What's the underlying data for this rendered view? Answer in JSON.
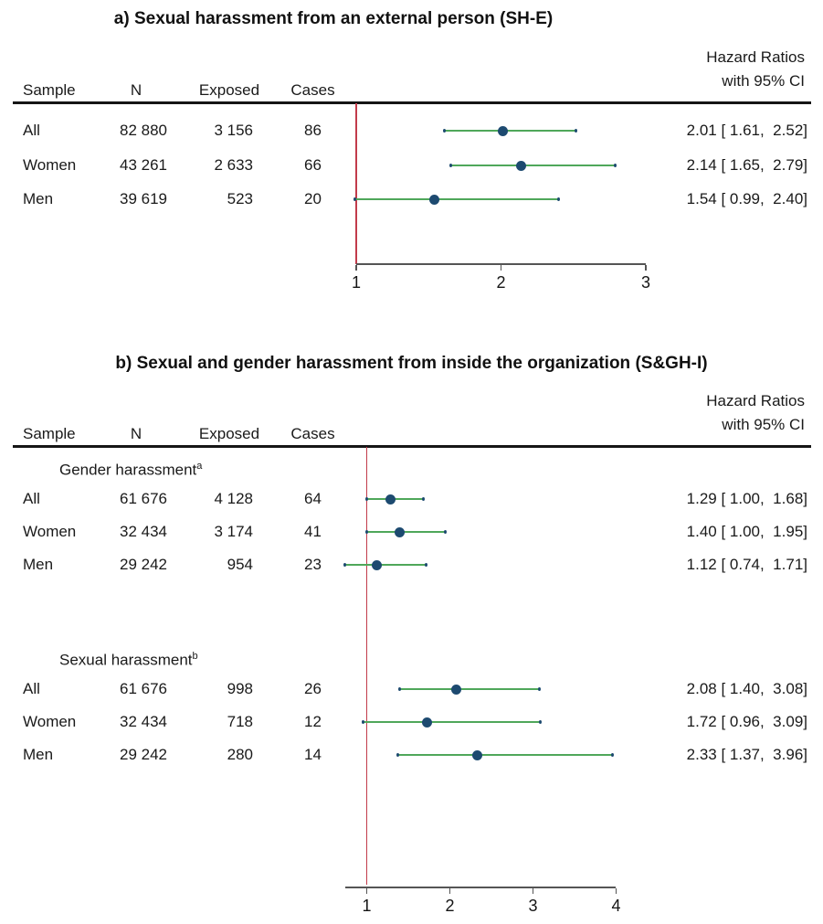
{
  "colors": {
    "ci_line": "#4fa75a",
    "marker": "#1d4a70",
    "ref_line": "#c23b4b",
    "axis": "#555555",
    "rule": "#151515",
    "text": "#1a1a1a"
  },
  "chart_data": [
    {
      "type": "scatter",
      "variant": "forest-plot",
      "title": "a) Sexual harassment from an external person (SH-E)",
      "col_headers": {
        "sample": "Sample",
        "n": "N",
        "exposed": "Exposed",
        "cases": "Cases"
      },
      "hr_header": [
        "Hazard Ratios",
        "with 95% CI"
      ],
      "xlabel": "Hazard Ratio",
      "xlim": [
        1,
        3
      ],
      "x_ticks": [
        1,
        2,
        3
      ],
      "ref_line_x": 1,
      "grid": false,
      "legend": "none",
      "rows": [
        {
          "sample": "All",
          "n": "82 880",
          "exposed": "3 156",
          "cases": "86",
          "hr": 2.01,
          "ci_low": 1.61,
          "ci_high": 2.52,
          "hr_label": "2.01 [ 1.61,  2.52]"
        },
        {
          "sample": "Women",
          "n": "43 261",
          "exposed": "2 633",
          "cases": "66",
          "hr": 2.14,
          "ci_low": 1.65,
          "ci_high": 2.79,
          "hr_label": "2.14 [ 1.65,  2.79]"
        },
        {
          "sample": "Men",
          "n": "39 619",
          "exposed": "523",
          "cases": "20",
          "hr": 1.54,
          "ci_low": 0.99,
          "ci_high": 2.4,
          "hr_label": "1.54 [ 0.99,  2.40]"
        }
      ]
    },
    {
      "type": "scatter",
      "variant": "forest-plot",
      "title": "b) Sexual and gender harassment from inside the organization (S&GH-I)",
      "col_headers": {
        "sample": "Sample",
        "n": "N",
        "exposed": "Exposed",
        "cases": "Cases"
      },
      "hr_header": [
        "Hazard Ratios",
        "with 95% CI"
      ],
      "xlabel": "Hazard Ratio",
      "xlim": [
        0.74,
        4
      ],
      "x_ticks": [
        1,
        2,
        3,
        4
      ],
      "ref_line_x": 1,
      "grid": false,
      "legend": "none",
      "groups": [
        {
          "label": "Gender harassment",
          "sup": "a",
          "rows": [
            {
              "sample": "All",
              "n": "61 676",
              "exposed": "4 128",
              "cases": "64",
              "hr": 1.29,
              "ci_low": 1.0,
              "ci_high": 1.68,
              "hr_label": "1.29 [ 1.00,  1.68]"
            },
            {
              "sample": "Women",
              "n": "32 434",
              "exposed": "3 174",
              "cases": "41",
              "hr": 1.4,
              "ci_low": 1.0,
              "ci_high": 1.95,
              "hr_label": "1.40 [ 1.00,  1.95]"
            },
            {
              "sample": "Men",
              "n": "29 242",
              "exposed": "954",
              "cases": "23",
              "hr": 1.12,
              "ci_low": 0.74,
              "ci_high": 1.71,
              "hr_label": "1.12 [ 0.74,  1.71]"
            }
          ]
        },
        {
          "label": "Sexual harassment",
          "sup": "b",
          "rows": [
            {
              "sample": "All",
              "n": "61 676",
              "exposed": "998",
              "cases": "26",
              "hr": 2.08,
              "ci_low": 1.4,
              "ci_high": 3.08,
              "hr_label": "2.08 [ 1.40,  3.08]"
            },
            {
              "sample": "Women",
              "n": "32 434",
              "exposed": "718",
              "cases": "12",
              "hr": 1.72,
              "ci_low": 0.96,
              "ci_high": 3.09,
              "hr_label": "1.72 [ 0.96,  3.09]"
            },
            {
              "sample": "Men",
              "n": "29 242",
              "exposed": "280",
              "cases": "14",
              "hr": 2.33,
              "ci_low": 1.37,
              "ci_high": 3.96,
              "hr_label": "2.33 [ 1.37,  3.96]"
            }
          ]
        }
      ]
    }
  ]
}
